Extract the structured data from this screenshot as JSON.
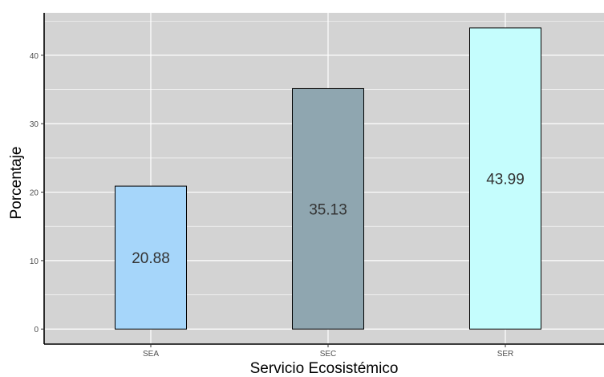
{
  "chart_data": {
    "type": "bar",
    "title": "",
    "xlabel": "Servicio Ecosistémico",
    "ylabel": "Porcentaje",
    "categories": [
      "SEA",
      "SEC",
      "SER"
    ],
    "values": [
      20.88,
      35.13,
      43.99
    ],
    "data_labels": [
      "20.88",
      "35.13",
      "43.99"
    ],
    "bar_colors": [
      "#a6d6fa",
      "#8fa6b0",
      "#c5fdfd"
    ],
    "bar_outline_color": "#000000",
    "yticks": [
      0,
      10,
      20,
      30,
      40
    ],
    "ytick_labels": [
      "0",
      "10",
      "20",
      "30",
      "40"
    ],
    "ylim": [
      -2.2,
      46.2
    ],
    "grid": true,
    "panel_background": "#d3d3d3",
    "grid_color": "#ffffff",
    "legend": "none"
  }
}
